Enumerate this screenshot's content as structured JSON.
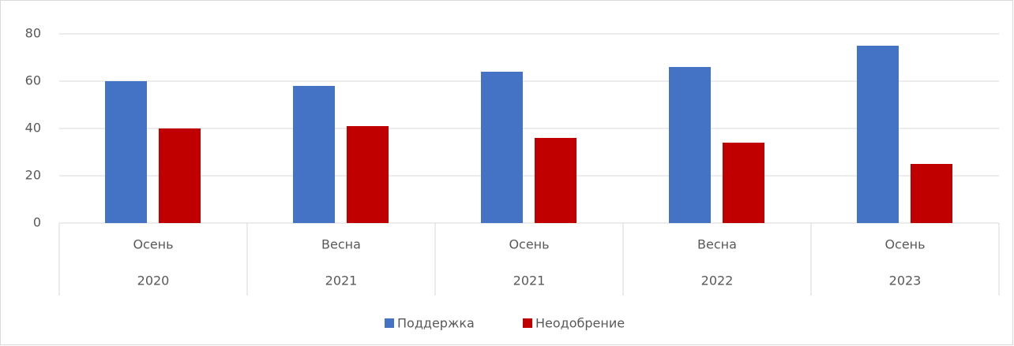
{
  "chart_data": {
    "type": "bar",
    "categories": [
      "Осень",
      "Весна",
      "Осень",
      "Весна",
      "Осень"
    ],
    "category_years": [
      "2020",
      "2021",
      "2021",
      "2022",
      "2023"
    ],
    "series": [
      {
        "name": "Поддержка",
        "color": "#4472c4",
        "values": [
          60,
          58,
          64,
          66,
          75
        ]
      },
      {
        "name": "Неодобрение",
        "color": "#c00000",
        "values": [
          40,
          41,
          36,
          34,
          25
        ]
      }
    ],
    "ylim": [
      0,
      80
    ],
    "yticks": [
      0,
      20,
      40,
      60,
      80
    ],
    "grid": true,
    "legend": "bottom"
  }
}
